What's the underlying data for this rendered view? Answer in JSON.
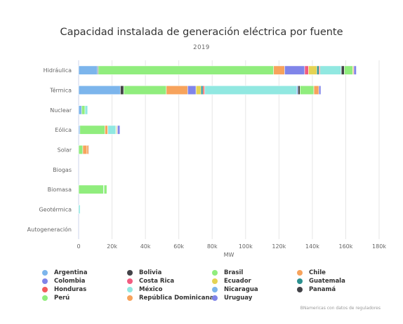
{
  "chart_data": {
    "type": "bar",
    "orientation": "horizontal",
    "stacked": true,
    "title": "Capacidad instalada de generación eléctrica por fuente",
    "subtitle": "2019",
    "xlabel": "MW",
    "xlim": [
      0,
      180000
    ],
    "xticks": [
      "0",
      "20k",
      "40k",
      "60k",
      "80k",
      "100k",
      "120k",
      "140k",
      "160k",
      "180k"
    ],
    "grid": true,
    "legend_position": "bottom",
    "categories": [
      "Hidráulica",
      "Térmica",
      "Nuclear",
      "Eólica",
      "Solar",
      "Biogas",
      "Biomasa",
      "Geotérmica",
      "Autogeneración"
    ],
    "series": [
      {
        "name": "Argentina",
        "color": "#7cb5ec",
        "values": [
          11300,
          25000,
          1800,
          750,
          0,
          0,
          0,
          0,
          0
        ]
      },
      {
        "name": "Bolivia",
        "color": "#434348",
        "values": [
          500,
          2000,
          0,
          0,
          0,
          0,
          0,
          0,
          0
        ]
      },
      {
        "name": "Brasil",
        "color": "#90ed7d",
        "values": [
          105000,
          25500,
          2000,
          15000,
          2500,
          0,
          14900,
          0,
          0
        ]
      },
      {
        "name": "Chile",
        "color": "#f7a35c",
        "values": [
          6600,
          12800,
          0,
          1700,
          2500,
          0,
          0,
          0,
          0
        ]
      },
      {
        "name": "Colombia",
        "color": "#8085e9",
        "values": [
          12000,
          5000,
          0,
          0,
          0,
          0,
          0,
          0,
          0
        ]
      },
      {
        "name": "Costa Rica",
        "color": "#f15c80",
        "values": [
          2300,
          0,
          0,
          0,
          0,
          0,
          0,
          0,
          0
        ]
      },
      {
        "name": "Ecuador",
        "color": "#e4d354",
        "values": [
          5000,
          3000,
          0,
          0,
          0,
          0,
          0,
          0,
          0
        ]
      },
      {
        "name": "Guatemala",
        "color": "#2b908f",
        "values": [
          1300,
          1200,
          0,
          0,
          0,
          0,
          0,
          0,
          0
        ]
      },
      {
        "name": "Honduras",
        "color": "#f45b5b",
        "values": [
          600,
          1000,
          0,
          0,
          0,
          0,
          0,
          0,
          0
        ]
      },
      {
        "name": "México",
        "color": "#91e8e1",
        "values": [
          12600,
          55000,
          1600,
          4800,
          0,
          0,
          300,
          900,
          0
        ]
      },
      {
        "name": "Nicaragua",
        "color": "#7cb5ec",
        "values": [
          150,
          900,
          0,
          200,
          0,
          0,
          0,
          0,
          0
        ]
      },
      {
        "name": "Panamá",
        "color": "#434348",
        "values": [
          1800,
          1200,
          0,
          0,
          0,
          0,
          0,
          0,
          0
        ]
      },
      {
        "name": "Perú",
        "color": "#90ed7d",
        "values": [
          5100,
          8300,
          0,
          400,
          0,
          0,
          1700,
          0,
          0
        ]
      },
      {
        "name": "República Dominicana",
        "color": "#f7a35c",
        "values": [
          600,
          3000,
          0,
          400,
          1000,
          0,
          0,
          0,
          0
        ]
      },
      {
        "name": "Uruguay",
        "color": "#8085e9",
        "values": [
          1500,
          1200,
          0,
          1500,
          300,
          0,
          0,
          0,
          0
        ]
      }
    ],
    "credits": "BNamericas con datos de reguladores"
  }
}
